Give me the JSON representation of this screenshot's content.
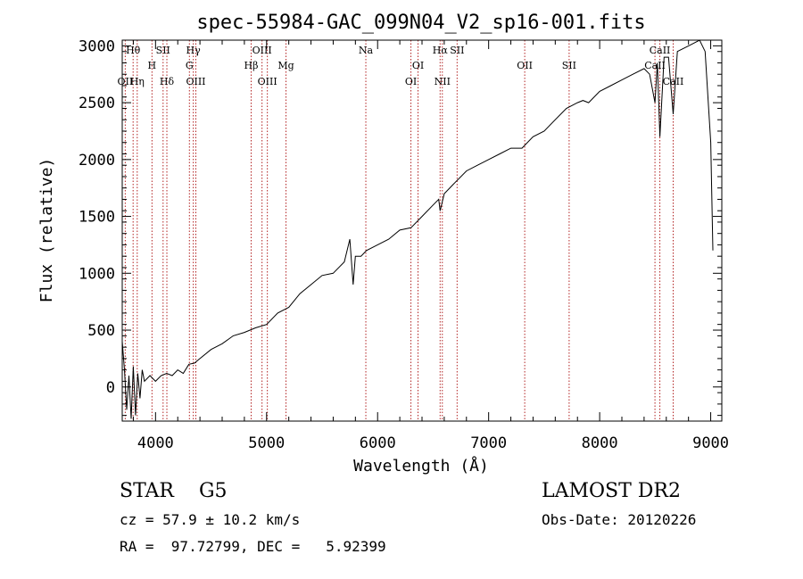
{
  "chart_data": {
    "type": "line",
    "title": "spec-55984-GAC_099N04_V2_sp16-001.fits",
    "xlabel": "Wavelength (Å)",
    "ylabel": "Flux (relative)",
    "xlim": [
      3700,
      9100
    ],
    "ylim": [
      -300,
      3050
    ],
    "xticks": [
      4000,
      5000,
      6000,
      7000,
      8000,
      9000
    ],
    "yticks": [
      0,
      500,
      1000,
      1500,
      2000,
      2500,
      3000
    ],
    "grid": false,
    "line_color": "#000000",
    "marker_color": "#b22222",
    "series": [
      {
        "x": [
          3700,
          3720,
          3740,
          3760,
          3780,
          3800,
          3820,
          3840,
          3860,
          3880,
          3900,
          3950,
          4000,
          4050,
          4100,
          4150,
          4200,
          4250,
          4300,
          4350,
          4400,
          4500,
          4600,
          4700,
          4800,
          4900,
          5000,
          5100,
          5200,
          5300,
          5400,
          5500,
          5600,
          5700,
          5750,
          5780,
          5800,
          5850,
          5900,
          6000,
          6100,
          6200,
          6300,
          6400,
          6500,
          6550,
          6563,
          6600,
          6700,
          6800,
          6900,
          7000,
          7100,
          7200,
          7300,
          7400,
          7500,
          7600,
          7700,
          7800,
          7850,
          7900,
          8000,
          8100,
          8200,
          8300,
          8400,
          8450,
          8498,
          8520,
          8542,
          8580,
          8620,
          8662,
          8700,
          8800,
          8900,
          8950,
          9000,
          9020
        ],
        "y": [
          400,
          150,
          -200,
          100,
          -280,
          180,
          -250,
          120,
          -100,
          150,
          50,
          100,
          50,
          100,
          120,
          100,
          150,
          120,
          200,
          210,
          250,
          330,
          380,
          450,
          480,
          520,
          550,
          650,
          700,
          820,
          900,
          980,
          1000,
          1100,
          1300,
          900,
          1150,
          1150,
          1200,
          1250,
          1300,
          1380,
          1400,
          1500,
          1600,
          1650,
          1550,
          1700,
          1800,
          1900,
          1950,
          2000,
          2050,
          2100,
          2100,
          2200,
          2250,
          2350,
          2450,
          2500,
          2520,
          2500,
          2600,
          2650,
          2700,
          2750,
          2800,
          2750,
          2500,
          2850,
          2200,
          2900,
          2900,
          2400,
          2950,
          3000,
          3050,
          2950,
          2150,
          1200
        ]
      }
    ],
    "lines": [
      {
        "label": "Hθ",
        "x": 3798,
        "row": 0
      },
      {
        "label": "OII",
        "x": 3727,
        "row": 2
      },
      {
        "label": "Hη",
        "x": 3835,
        "row": 2
      },
      {
        "label": "H",
        "x": 3968,
        "row": 1
      },
      {
        "label": "SII",
        "x": 4068,
        "row": 0
      },
      {
        "label": "Hδ",
        "x": 4102,
        "row": 2
      },
      {
        "label": "Hγ",
        "x": 4340,
        "row": 0
      },
      {
        "label": "G",
        "x": 4305,
        "row": 1
      },
      {
        "label": "OIII",
        "x": 4363,
        "row": 2
      },
      {
        "label": "OIII",
        "x": 4959,
        "row": 0
      },
      {
        "label": "Hβ",
        "x": 4861,
        "row": 1
      },
      {
        "label": "OIII",
        "x": 5007,
        "row": 2
      },
      {
        "label": "Mg",
        "x": 5175,
        "row": 1
      },
      {
        "label": "Na",
        "x": 5894,
        "row": 0
      },
      {
        "label": "OI",
        "x": 6364,
        "row": 1
      },
      {
        "label": "OI",
        "x": 6300,
        "row": 2
      },
      {
        "label": "Hα",
        "x": 6563,
        "row": 0
      },
      {
        "label": "SII",
        "x": 6716,
        "row": 0
      },
      {
        "label": "NII",
        "x": 6583,
        "row": 2
      },
      {
        "label": "OII",
        "x": 7325,
        "row": 1
      },
      {
        "label": "SII",
        "x": 7725,
        "row": 1
      },
      {
        "label": "CaII",
        "x": 8542,
        "row": 0
      },
      {
        "label": "CaII",
        "x": 8498,
        "row": 1
      },
      {
        "label": "CaII",
        "x": 8662,
        "row": 2
      }
    ]
  },
  "info": {
    "class_line": "STAR    G5",
    "cz_line": "cz = 57.9 ± 10.2 km/s",
    "radec_line": "RA =  97.72799, DEC =   5.92399",
    "survey": "LAMOST DR2",
    "obs_date": "Obs-Date: 20120226"
  }
}
